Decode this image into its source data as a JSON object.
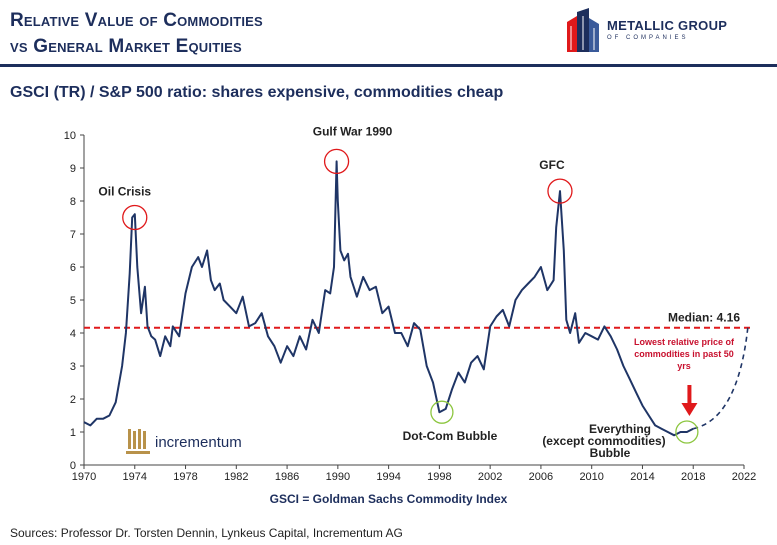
{
  "header": {
    "title_line1": "Relative Value of Commodities",
    "title_line2": "vs General Market Equities",
    "logo_text": "METALLIC GROUP",
    "logo_sub": "OF COMPANIES"
  },
  "subtitle": "GSCI (TR) / S&P 500 ratio: shares expensive, commodities cheap",
  "watermark": "incrementum",
  "footnote": "GSCI = Goldman Sachs Commodity Index",
  "sources": "Sources: Professor Dr. Torsten Dennin, Lynkeus Capital, Incrementum AG",
  "colors": {
    "title": "#1d2e5c",
    "series": "#1f3566",
    "median": "#e0191b",
    "highlight_red": "#e0191b",
    "highlight_green": "#8cc63f",
    "low_note": "#c8102e"
  },
  "chart_data": {
    "type": "line",
    "title": "GSCI (TR) / S&P 500 ratio: shares expensive, commodities cheap",
    "xlim": [
      1970,
      2022
    ],
    "ylim": [
      0,
      10
    ],
    "x_ticks": [
      1970,
      1974,
      1978,
      1982,
      1986,
      1990,
      1994,
      1998,
      2002,
      2006,
      2010,
      2014,
      2018,
      2022
    ],
    "y_ticks": [
      0,
      1,
      2,
      3,
      4,
      5,
      6,
      7,
      8,
      9,
      10
    ],
    "grid": false,
    "median": {
      "value": 4.16,
      "label": "Median: 4.16"
    },
    "series": [
      {
        "x": [
          1970,
          1970.5,
          1971,
          1971.5,
          1972,
          1972.5,
          1973,
          1973.3,
          1973.6,
          1973.8,
          1974,
          1974.2,
          1974.5,
          1974.8,
          1975,
          1975.3,
          1975.6,
          1976,
          1976.4,
          1976.8,
          1977,
          1977.5,
          1978,
          1978.5,
          1979,
          1979.3,
          1979.7,
          1980,
          1980.3,
          1980.7,
          1981,
          1981.5,
          1982,
          1982.5,
          1983,
          1983.5,
          1984,
          1984.5,
          1985,
          1985.5,
          1986,
          1986.5,
          1987,
          1987.5,
          1988,
          1988.5,
          1989,
          1989.4,
          1989.7,
          1989.9,
          1990,
          1990.2,
          1990.5,
          1990.8,
          1991,
          1991.5,
          1992,
          1992.5,
          1993,
          1993.5,
          1994,
          1994.5,
          1995,
          1995.5,
          1996,
          1996.5,
          1997,
          1997.5,
          1998,
          1998.5,
          1999,
          1999.5,
          2000,
          2000.5,
          2001,
          2001.5,
          2002,
          2002.5,
          2003,
          2003.5,
          2004,
          2004.5,
          2005,
          2005.5,
          2006,
          2006.5,
          2007,
          2007.2,
          2007.5,
          2007.8,
          2008,
          2008.3,
          2008.7,
          2009,
          2009.5,
          2010,
          2010.5,
          2011,
          2011.5,
          2012,
          2012.5,
          2013,
          2013.5,
          2014,
          2014.5,
          2015,
          2015.5,
          2016,
          2016.5,
          2017,
          2017.5,
          2018
        ],
        "values": [
          1.3,
          1.2,
          1.4,
          1.4,
          1.5,
          1.9,
          3.0,
          4.0,
          5.8,
          7.5,
          7.6,
          6.0,
          4.6,
          5.4,
          4.2,
          3.9,
          3.8,
          3.3,
          3.9,
          3.6,
          4.2,
          3.9,
          5.2,
          6.0,
          6.3,
          6.0,
          6.5,
          5.6,
          5.3,
          5.5,
          5.0,
          4.8,
          4.6,
          5.1,
          4.2,
          4.3,
          4.6,
          3.9,
          3.6,
          3.1,
          3.6,
          3.3,
          3.9,
          3.5,
          4.4,
          4.0,
          5.3,
          5.2,
          6.0,
          9.2,
          8.0,
          6.5,
          6.2,
          6.4,
          5.7,
          5.1,
          5.7,
          5.3,
          5.4,
          4.6,
          4.8,
          4.0,
          4.0,
          3.6,
          4.3,
          4.1,
          3.0,
          2.5,
          1.6,
          1.7,
          2.3,
          2.8,
          2.5,
          3.1,
          3.3,
          2.9,
          4.2,
          4.5,
          4.7,
          4.2,
          5.0,
          5.3,
          5.5,
          5.7,
          6.0,
          5.3,
          5.6,
          7.2,
          8.3,
          6.5,
          4.4,
          4.0,
          4.6,
          3.7,
          4.0,
          3.9,
          3.8,
          4.2,
          3.9,
          3.5,
          3.0,
          2.6,
          2.2,
          1.8,
          1.5,
          1.2,
          1.1,
          1.0,
          0.9,
          1.0,
          1.0,
          1.1
        ]
      }
    ],
    "highlights": [
      {
        "label": "Oil Crisis",
        "x": 1974,
        "y": 7.5,
        "color": "red"
      },
      {
        "label": "Gulf War 1990",
        "x": 1989.9,
        "y": 9.2,
        "color": "red"
      },
      {
        "label": "GFC",
        "x": 2007.5,
        "y": 8.3,
        "color": "red"
      },
      {
        "label": "Dot-Com Bubble",
        "x": 1998.2,
        "y": 1.6,
        "color": "green"
      },
      {
        "label": "Everything (except commodities) Bubble",
        "x": 2017.5,
        "y": 1.0,
        "color": "green"
      }
    ],
    "annotations": {
      "low_note": "Lowest relative price of commodities in past 50 yrs",
      "everything_line1": "Everything",
      "everything_line2": "(except commodities)",
      "everything_line3": "Bubble"
    }
  }
}
